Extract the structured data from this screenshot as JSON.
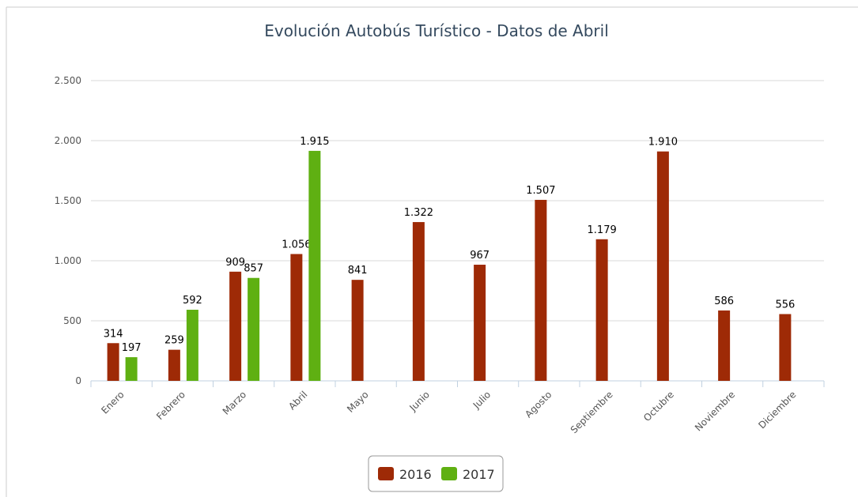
{
  "chart_data": {
    "type": "bar",
    "title": "Evolución Autobús Turístico - Datos de Abril",
    "categories": [
      "Enero",
      "Febrero",
      "Marzo",
      "Abril",
      "Mayo",
      "Junio",
      "Julio",
      "Agosto",
      "Septiembre",
      "Octubre",
      "Noviembre",
      "Diciembre"
    ],
    "series": [
      {
        "name": "2016",
        "color": "#9e2a06",
        "values": [
          314,
          259,
          909,
          1056,
          841,
          1322,
          967,
          1507,
          1179,
          1910,
          586,
          556
        ],
        "value_labels": [
          "314",
          "259",
          "909",
          "1.056",
          "841",
          "1.322",
          "967",
          "1.507",
          "1.179",
          "1.910",
          "586",
          "556"
        ]
      },
      {
        "name": "2017",
        "color": "#5fb012",
        "values": [
          197,
          592,
          857,
          1915,
          null,
          null,
          null,
          null,
          null,
          null,
          null,
          null
        ],
        "value_labels": [
          "197",
          "592",
          "857",
          "1.915",
          null,
          null,
          null,
          null,
          null,
          null,
          null,
          null
        ]
      }
    ],
    "ylim": [
      0,
      2500
    ],
    "yticks": [
      0,
      500,
      {
        "value": 1000,
        "label": "1.000"
      },
      {
        "value": 1500,
        "label": "1.500"
      },
      {
        "value": 2000,
        "label": "2.000"
      },
      {
        "value": 2500,
        "label": "2.500"
      }
    ],
    "grid": true,
    "legend": "bottom"
  }
}
